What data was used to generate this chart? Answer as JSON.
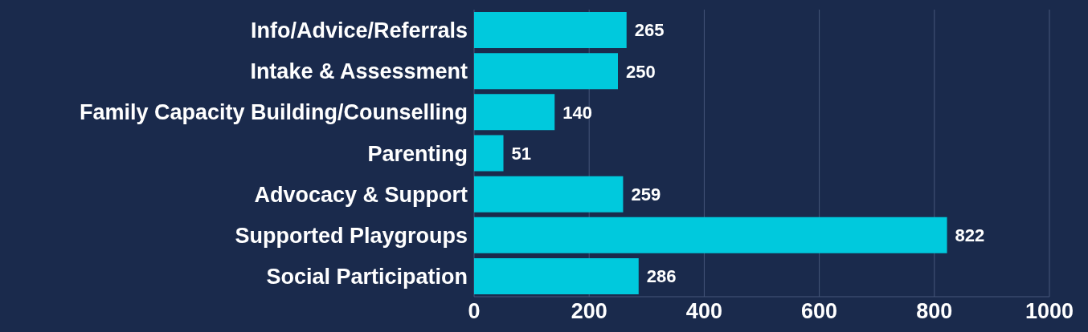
{
  "chart_data": {
    "type": "bar",
    "orientation": "horizontal",
    "categories": [
      "Info/Advice/Referrals",
      "Intake & Assessment",
      "Family Capacity Building/Counselling",
      "Parenting",
      "Advocacy & Support",
      "Supported Playgroups",
      "Social Participation"
    ],
    "values": [
      265,
      250,
      140,
      51,
      259,
      822,
      286
    ],
    "color": "#00c9dd",
    "xlim": [
      0,
      1000
    ],
    "xticks": [
      0,
      200,
      400,
      600,
      800,
      1000
    ],
    "grid": "x",
    "data_labels": true
  }
}
